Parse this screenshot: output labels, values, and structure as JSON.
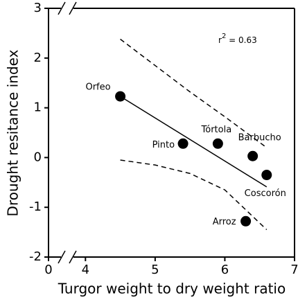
{
  "chart_data": {
    "type": "scatter",
    "xlabel": "Turgor weight to dry weight ratio",
    "ylabel": "Drought resitance index",
    "annotation": [
      "r",
      "2",
      " = 0.63"
    ],
    "xlim": [
      3.47,
      7
    ],
    "ylim": [
      -2,
      3
    ],
    "xticks": [
      0,
      4,
      5,
      6,
      7
    ],
    "yticks": [
      -2,
      -1,
      0,
      1,
      2,
      3
    ],
    "x_axis_break": true,
    "color": "#000000",
    "points": {
      "labels": [
        "Orfeo",
        "Pinto",
        "Tórtola",
        "Barbucho",
        "Coscorón",
        "Arroz"
      ],
      "x": [
        4.5,
        5.4,
        5.9,
        6.4,
        6.6,
        6.3
      ],
      "values": [
        1.23,
        0.28,
        0.28,
        0.03,
        -0.35,
        -1.28
      ]
    },
    "fit_line": {
      "x": [
        4.5,
        6.6
      ],
      "values": [
        1.23,
        -0.59
      ]
    },
    "upper_band": {
      "x": [
        4.5,
        5.0,
        5.5,
        6.0,
        6.6
      ],
      "values": [
        2.38,
        1.85,
        1.32,
        0.82,
        0.2
      ]
    },
    "lower_band": {
      "x": [
        4.5,
        5.0,
        5.5,
        6.0,
        6.6
      ],
      "values": [
        -0.05,
        -0.15,
        -0.32,
        -0.65,
        -1.45
      ]
    }
  }
}
